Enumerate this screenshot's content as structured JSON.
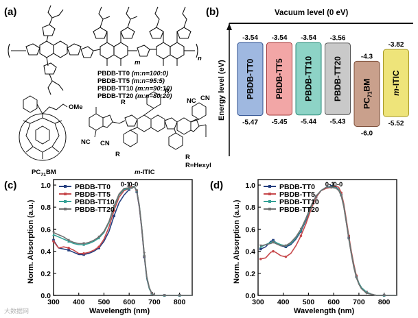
{
  "panels": {
    "a": "(a)",
    "b": "(b)",
    "c": "(c)",
    "d": "(d)"
  },
  "structures": {
    "polymer_series": [
      "PBDB-TT0 (m:n=100:0)",
      "PBDB-TT5 (m:n=95:5)",
      "PBDB-TT10 (m:n=90:10)",
      "PBDB-TT20 (m:n=80:20)"
    ],
    "polymer_series_parts": [
      {
        "name": "PBDB-TT0",
        "ratio": "(m:n=100:0)"
      },
      {
        "name": "PBDB-TT5",
        "ratio": "(m:n=95:5)"
      },
      {
        "name": "PBDB-TT10",
        "ratio": "(m:n=90:10)"
      },
      {
        "name": "PBDB-TT20",
        "ratio": "(m:n=80:20)"
      }
    ],
    "fullerene_name": "PC71BM",
    "fullerene_name_main": "PC",
    "fullerene_name_sub": "71",
    "fullerene_name_end": "BM",
    "ester_label": "OMe",
    "acceptor_name": "m-ITIC",
    "acceptor_name_italic": "m",
    "acceptor_name_rest": "-ITIC",
    "r_group": "R=Hexyl",
    "r_symbol": "R",
    "nitrile": "NC",
    "nitrile2": "CN",
    "subscripts": {
      "m": "m",
      "n": "n"
    }
  },
  "chart_data": [
    {
      "id": "b",
      "type": "energy-level-diagram",
      "title": "Vacuum level (0 eV)",
      "ylabel": "Energy level (eV)",
      "materials": [
        {
          "name": "PBDB-TT0",
          "lumo": -3.54,
          "homo": -5.47,
          "lumo_label": "-3.54",
          "homo_label": "-5.47",
          "color": "#9fb8e0",
          "stroke": "#2e4f8f"
        },
        {
          "name": "PBDB-TT5",
          "lumo": -3.54,
          "homo": -5.45,
          "lumo_label": "-3.54",
          "homo_label": "-5.45",
          "color": "#f2a6a6",
          "stroke": "#a33b3b"
        },
        {
          "name": "PBDB-TT10",
          "lumo": -3.54,
          "homo": -5.44,
          "lumo_label": "-3.54",
          "homo_label": "-5.44",
          "color": "#8dd3c6",
          "stroke": "#2a8a78"
        },
        {
          "name": "PBDB-TT20",
          "lumo": -3.56,
          "homo": -5.43,
          "lumo_label": "-3.56",
          "homo_label": "-5.43",
          "color": "#c9c9c9",
          "stroke": "#555555"
        },
        {
          "name_main": "PC",
          "name_sub": "71",
          "name_end": "BM",
          "lumo": -4.3,
          "homo": -6.0,
          "lumo_label": "-4.3",
          "homo_label": "-6.0",
          "color": "#c9a08c",
          "stroke": "#7a4b36"
        },
        {
          "name_italic": "m",
          "name_rest": "-ITIC",
          "lumo": -3.82,
          "homo": -5.52,
          "lumo_label": "-3.82",
          "homo_label": "-5.52",
          "color": "#eee47a",
          "stroke": "#a89a25"
        }
      ]
    },
    {
      "id": "c",
      "type": "line",
      "xlabel": "Wavelength (nm)",
      "ylabel": "Norm. Absorption (a.u.)",
      "xlim": [
        300,
        850
      ],
      "ylim": [
        0.0,
        1.05
      ],
      "xticks": [
        "300",
        "400",
        "500",
        "600",
        "700",
        "800"
      ],
      "yticks": [
        "0.0",
        "0.2",
        "0.4",
        "0.6",
        "0.8",
        "1.0"
      ],
      "peak_labels": [
        "0-1",
        "0-0"
      ],
      "x": [
        300,
        320,
        340,
        360,
        380,
        400,
        420,
        440,
        460,
        480,
        500,
        520,
        540,
        560,
        580,
        600,
        610,
        620,
        630,
        640,
        650,
        660,
        670,
        680,
        690,
        700,
        720,
        740,
        760,
        780,
        800,
        850
      ],
      "series": [
        {
          "name": "PBDB-TT0",
          "color": "#253f7f",
          "marker": "square",
          "values": [
            0.5,
            0.43,
            0.42,
            0.41,
            0.39,
            0.37,
            0.37,
            0.38,
            0.4,
            0.43,
            0.49,
            0.58,
            0.72,
            0.84,
            0.91,
            0.96,
            0.985,
            0.99,
            0.94,
            0.8,
            0.6,
            0.35,
            0.15,
            0.06,
            0.02,
            0.0,
            0.0,
            0.0,
            0.0,
            0.0,
            0.0,
            0.0
          ]
        },
        {
          "name": "PBDB-TT5",
          "color": "#c7494c",
          "marker": "circle",
          "values": [
            0.49,
            0.43,
            0.44,
            0.43,
            0.41,
            0.38,
            0.38,
            0.39,
            0.41,
            0.44,
            0.51,
            0.62,
            0.77,
            0.89,
            0.95,
            0.97,
            0.985,
            0.99,
            0.95,
            0.81,
            0.61,
            0.36,
            0.16,
            0.06,
            0.02,
            0.0,
            0.0,
            0.0,
            0.0,
            0.0,
            0.0,
            0.0
          ]
        },
        {
          "name": "PBDB-TT10",
          "color": "#35a196",
          "marker": "triangle",
          "values": [
            0.55,
            0.53,
            0.51,
            0.49,
            0.47,
            0.46,
            0.46,
            0.47,
            0.49,
            0.52,
            0.57,
            0.66,
            0.8,
            0.91,
            0.96,
            0.97,
            0.975,
            0.99,
            0.95,
            0.82,
            0.62,
            0.37,
            0.16,
            0.06,
            0.02,
            0.0,
            0.0,
            0.0,
            0.0,
            0.0,
            0.0,
            0.0
          ]
        },
        {
          "name": "PBDB-TT20",
          "color": "#707070",
          "marker": "triangle-down",
          "values": [
            0.57,
            0.55,
            0.53,
            0.5,
            0.48,
            0.47,
            0.47,
            0.48,
            0.5,
            0.53,
            0.58,
            0.67,
            0.81,
            0.92,
            0.97,
            0.975,
            0.97,
            0.985,
            0.95,
            0.82,
            0.62,
            0.38,
            0.17,
            0.07,
            0.02,
            0.0,
            0.0,
            0.0,
            0.0,
            0.0,
            0.0,
            0.0
          ]
        }
      ]
    },
    {
      "id": "d",
      "type": "line",
      "xlabel": "Wavelength (nm)",
      "ylabel": "Norm. Absorption (a.u.)",
      "xlim": [
        300,
        850
      ],
      "ylim": [
        0.0,
        1.05
      ],
      "xticks": [
        "300",
        "400",
        "500",
        "600",
        "700",
        "800"
      ],
      "yticks": [
        "0.0",
        "0.2",
        "0.4",
        "0.6",
        "0.8",
        "1.0"
      ],
      "peak_labels": [
        "0-1",
        "0-0"
      ],
      "x": [
        310,
        330,
        350,
        360,
        370,
        390,
        410,
        430,
        450,
        470,
        490,
        510,
        530,
        550,
        570,
        590,
        610,
        620,
        630,
        640,
        650,
        660,
        670,
        680,
        690,
        700,
        710,
        730,
        750,
        770,
        800,
        850
      ],
      "series": [
        {
          "name": "PBDB-TT0",
          "color": "#253f7f",
          "marker": "square",
          "values": [
            0.42,
            0.44,
            0.49,
            0.5,
            0.48,
            0.45,
            0.44,
            0.46,
            0.51,
            0.58,
            0.68,
            0.79,
            0.89,
            0.95,
            0.98,
            0.99,
            0.98,
            0.96,
            0.91,
            0.81,
            0.67,
            0.52,
            0.38,
            0.26,
            0.17,
            0.11,
            0.07,
            0.03,
            0.01,
            0.0,
            0.0,
            0.0
          ]
        },
        {
          "name": "PBDB-TT5",
          "color": "#c7494c",
          "marker": "circle",
          "values": [
            0.33,
            0.34,
            0.39,
            0.4,
            0.39,
            0.36,
            0.35,
            0.38,
            0.45,
            0.54,
            0.65,
            0.78,
            0.89,
            0.95,
            0.97,
            0.98,
            0.99,
            0.98,
            0.93,
            0.83,
            0.69,
            0.54,
            0.4,
            0.28,
            0.18,
            0.11,
            0.07,
            0.03,
            0.01,
            0.0,
            0.0,
            0.0
          ]
        },
        {
          "name": "PBDB-TT10",
          "color": "#35a196",
          "marker": "triangle",
          "values": [
            0.44,
            0.46,
            0.48,
            0.49,
            0.48,
            0.46,
            0.45,
            0.47,
            0.52,
            0.59,
            0.69,
            0.8,
            0.9,
            0.95,
            0.98,
            0.985,
            0.975,
            0.96,
            0.91,
            0.81,
            0.67,
            0.52,
            0.38,
            0.26,
            0.17,
            0.11,
            0.07,
            0.03,
            0.01,
            0.0,
            0.0,
            0.0
          ]
        },
        {
          "name": "PBDB-TT20",
          "color": "#707070",
          "marker": "triangle-down",
          "values": [
            0.45,
            0.46,
            0.47,
            0.48,
            0.47,
            0.45,
            0.45,
            0.48,
            0.53,
            0.6,
            0.7,
            0.81,
            0.9,
            0.95,
            0.98,
            0.98,
            0.97,
            0.95,
            0.9,
            0.8,
            0.66,
            0.51,
            0.37,
            0.25,
            0.16,
            0.1,
            0.06,
            0.02,
            0.01,
            0.0,
            0.0,
            0.0
          ]
        }
      ]
    }
  ],
  "watermark": "大数据网"
}
